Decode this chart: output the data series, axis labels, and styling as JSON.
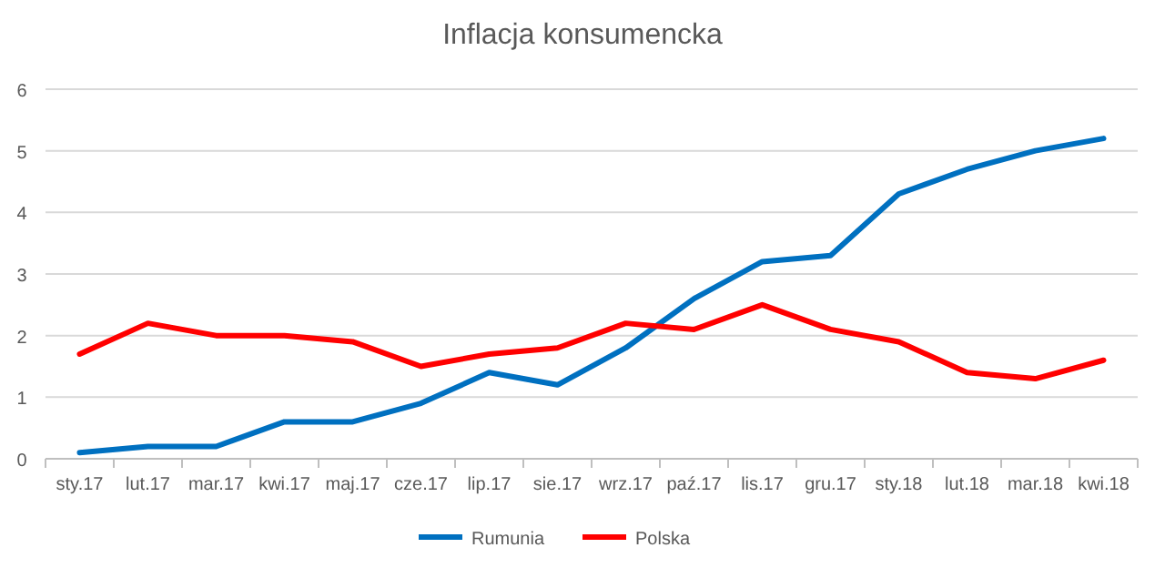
{
  "chart_data": {
    "type": "line",
    "title": "Inflacja konsumencka",
    "categories": [
      "sty.17",
      "lut.17",
      "mar.17",
      "kwi.17",
      "maj.17",
      "cze.17",
      "lip.17",
      "sie.17",
      "wrz.17",
      "paź.17",
      "lis.17",
      "gru.17",
      "sty.18",
      "lut.18",
      "mar.18",
      "kwi.18"
    ],
    "series": [
      {
        "name": "Rumunia",
        "color": "#0070c0",
        "values": [
          0.1,
          0.2,
          0.2,
          0.6,
          0.6,
          0.9,
          1.4,
          1.2,
          1.8,
          2.6,
          3.2,
          3.3,
          4.3,
          4.7,
          5.0,
          5.2
        ]
      },
      {
        "name": "Polska",
        "color": "#ff0000",
        "values": [
          1.7,
          2.2,
          2.0,
          2.0,
          1.9,
          1.5,
          1.7,
          1.8,
          2.2,
          2.1,
          2.5,
          2.1,
          1.9,
          1.4,
          1.3,
          1.6
        ]
      }
    ],
    "ylim": [
      0,
      6
    ],
    "yticks": [
      0,
      1,
      2,
      3,
      4,
      5,
      6
    ],
    "grid": "y",
    "legend": "bottom",
    "marker": "none",
    "line_style": "solid"
  }
}
